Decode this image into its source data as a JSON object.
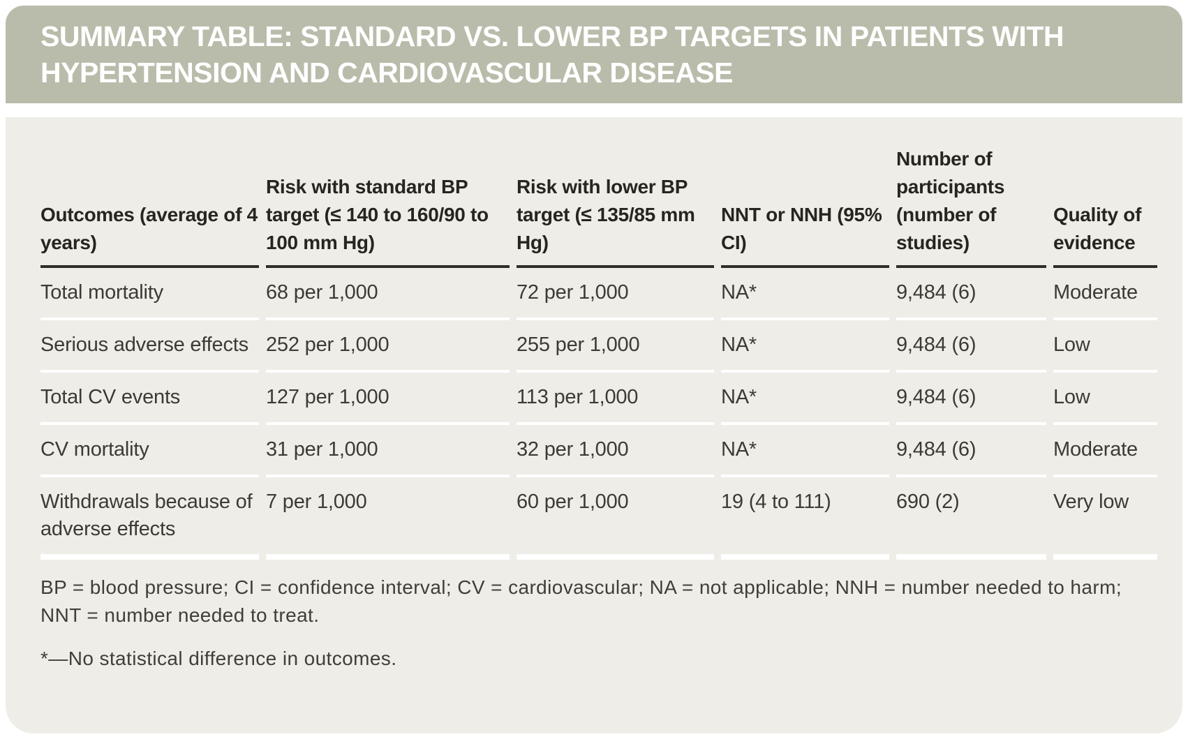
{
  "colors": {
    "band_background": "#b9bcaa",
    "body_background": "#efede7",
    "title_text": "#ffffff",
    "header_text": "#26251f",
    "body_text": "#3c3a34",
    "header_rule": "#2f2d28",
    "row_separator": "#ffffff"
  },
  "title": "SUMMARY TABLE: STANDARD VS. LOWER BP TARGETS IN PATIENTS WITH HYPERTENSION AND CARDIOVASCULAR DISEASE",
  "table": {
    "columns": [
      "Outcomes (average of 4 years)",
      "Risk with standard BP target (≤ 140 to 160/90 to 100 mm Hg)",
      "Risk with lower BP target (≤ 135/85 mm Hg)",
      "NNT or NNH (95% CI)",
      "Number of participants (number of studies)",
      "Quality of evidence"
    ],
    "rows": [
      [
        "Total mortality",
        "68 per 1,000",
        "72 per 1,000",
        "NA*",
        "9,484 (6)",
        "Moderate"
      ],
      [
        "Serious adverse effects",
        "252 per 1,000",
        "255 per 1,000",
        "NA*",
        "9,484 (6)",
        "Low"
      ],
      [
        "Total CV events",
        "127 per 1,000",
        "113 per 1,000",
        "NA*",
        "9,484 (6)",
        "Low"
      ],
      [
        "CV mortality",
        "31 per 1,000",
        "32 per 1,000",
        "NA*",
        "9,484 (6)",
        "Moderate"
      ],
      [
        "Withdrawals because of adverse effects",
        "7 per 1,000",
        "60 per 1,000",
        "19 (4 to 111)",
        "690 (2)",
        "Very low"
      ]
    ]
  },
  "footnotes": {
    "abbreviations": "BP = blood pressure; CI = confidence interval; CV = cardiovascular; NA = not applicable; NNH = number needed to harm; NNT = number needed to treat.",
    "note": "*—No statistical difference in outcomes."
  }
}
